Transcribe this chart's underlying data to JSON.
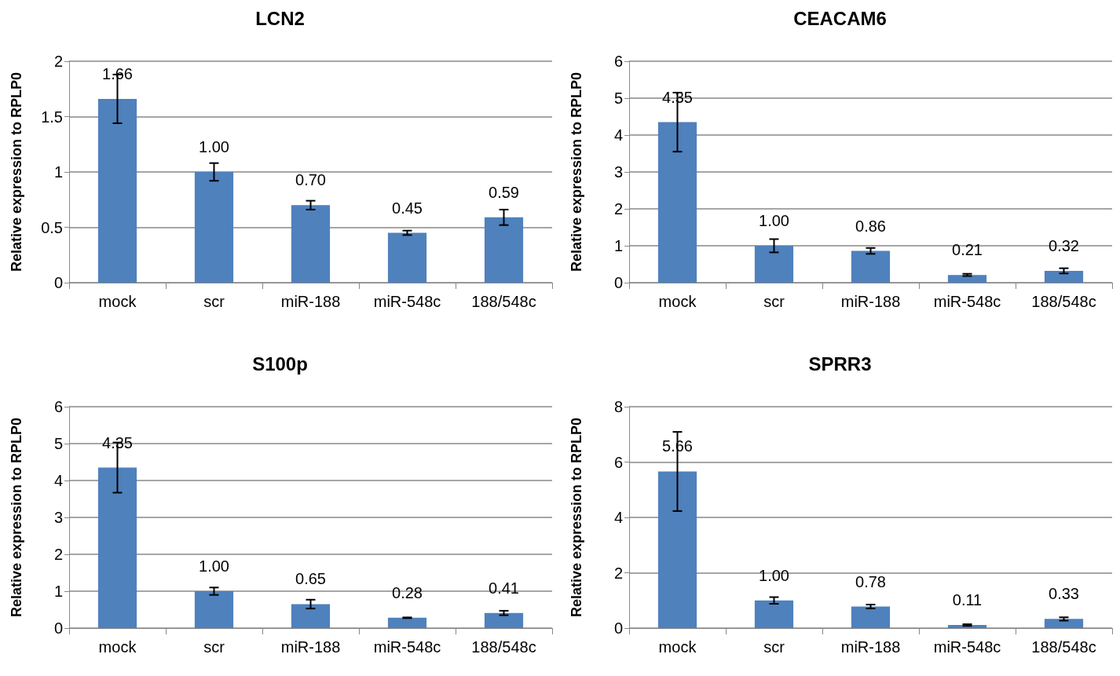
{
  "chart_data": [
    {
      "type": "bar",
      "title": "LCN2",
      "ylabel": "Relative expression to RPLP0",
      "categories": [
        "mock",
        "scr",
        "miR-188",
        "miR-548c",
        "188/548c"
      ],
      "values": [
        1.66,
        1.0,
        0.7,
        0.45,
        0.59
      ],
      "value_labels": [
        "1.66",
        "1.00",
        "0.70",
        "0.45",
        "0.59"
      ],
      "errors": [
        0.22,
        0.08,
        0.04,
        0.02,
        0.07
      ],
      "color": "#4f81bd",
      "ylim": [
        0,
        2
      ],
      "yticks": [
        0,
        0.5,
        1,
        1.5,
        2
      ],
      "grid": "y"
    },
    {
      "type": "bar",
      "title": "CEACAM6",
      "ylabel": "Relative expression to RPLP0",
      "categories": [
        "mock",
        "scr",
        "miR-188",
        "miR-548c",
        "188/548c"
      ],
      "values": [
        4.35,
        1.0,
        0.86,
        0.21,
        0.32
      ],
      "value_labels": [
        "4.35",
        "1.00",
        "0.86",
        "0.21",
        "0.32"
      ],
      "errors": [
        0.8,
        0.18,
        0.08,
        0.03,
        0.07
      ],
      "color": "#4f81bd",
      "ylim": [
        0,
        6
      ],
      "yticks": [
        0,
        1,
        2,
        3,
        4,
        5,
        6
      ],
      "grid": "y"
    },
    {
      "type": "bar",
      "title": "S100p",
      "ylabel": "Relative expression to RPLP0",
      "categories": [
        "mock",
        "scr",
        "miR-188",
        "miR-548c",
        "188/548c"
      ],
      "values": [
        4.35,
        1.0,
        0.65,
        0.28,
        0.41
      ],
      "value_labels": [
        "4.35",
        "1.00",
        "0.65",
        "0.28",
        "0.41"
      ],
      "errors": [
        0.68,
        0.1,
        0.12,
        0.01,
        0.06
      ],
      "color": "#4f81bd",
      "ylim": [
        0,
        6
      ],
      "yticks": [
        0,
        1,
        2,
        3,
        4,
        5,
        6
      ],
      "grid": "y"
    },
    {
      "type": "bar",
      "title": "SPRR3",
      "ylabel": "Relative expression to RPLP0",
      "categories": [
        "mock",
        "scr",
        "miR-188",
        "miR-548c",
        "188/548c"
      ],
      "values": [
        5.66,
        1.0,
        0.78,
        0.11,
        0.33
      ],
      "value_labels": [
        "5.66",
        "1.00",
        "0.78",
        "0.11",
        "0.33"
      ],
      "errors": [
        1.43,
        0.12,
        0.07,
        0.03,
        0.06
      ],
      "color": "#4f81bd",
      "ylim": [
        0,
        8
      ],
      "yticks": [
        0,
        2,
        4,
        6,
        8
      ],
      "grid": "y"
    }
  ]
}
